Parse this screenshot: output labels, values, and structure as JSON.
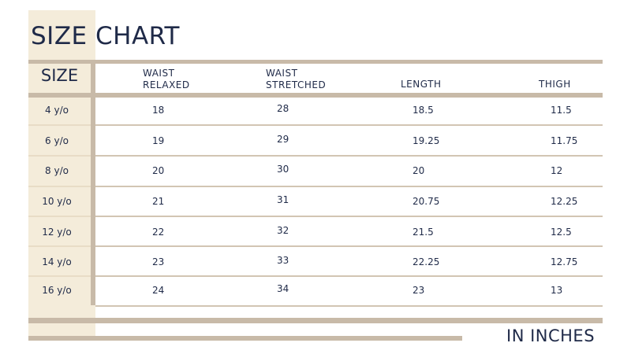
{
  "title": "SIZE CHART",
  "columns": {
    "size": "SIZE",
    "waist_relaxed": "WAIST\nRELAXED",
    "waist_stretched": "WAIST\nSTRETCHED",
    "length": "LENGTH",
    "thigh": "THIGH"
  },
  "rows": [
    {
      "size": "4 y/o",
      "waist_relaxed": "18",
      "waist_stretched": "28",
      "length": "18.5",
      "thigh": "11.5"
    },
    {
      "size": "6 y/o",
      "waist_relaxed": "19",
      "waist_stretched": "29",
      "length": "19.25",
      "thigh": "11.75"
    },
    {
      "size": "8 y/o",
      "waist_relaxed": "20",
      "waist_stretched": "30",
      "length": "20",
      "thigh": "12"
    },
    {
      "size": "10 y/o",
      "waist_relaxed": "21",
      "waist_stretched": "31",
      "length": "20.75",
      "thigh": "12.25"
    },
    {
      "size": "12 y/o",
      "waist_relaxed": "22",
      "waist_stretched": "32",
      "length": "21.5",
      "thigh": "12.5"
    },
    {
      "size": "14 y/o",
      "waist_relaxed": "23",
      "waist_stretched": "33",
      "length": "22.25",
      "thigh": "12.75"
    },
    {
      "size": "16 y/o",
      "waist_relaxed": "24",
      "waist_stretched": "34",
      "length": "23",
      "thigh": "13"
    }
  ],
  "unit_note": "IN INCHES",
  "colors": {
    "text": "#1f2a48",
    "accent": "#c8baa8",
    "cream": "#f4ecda"
  }
}
